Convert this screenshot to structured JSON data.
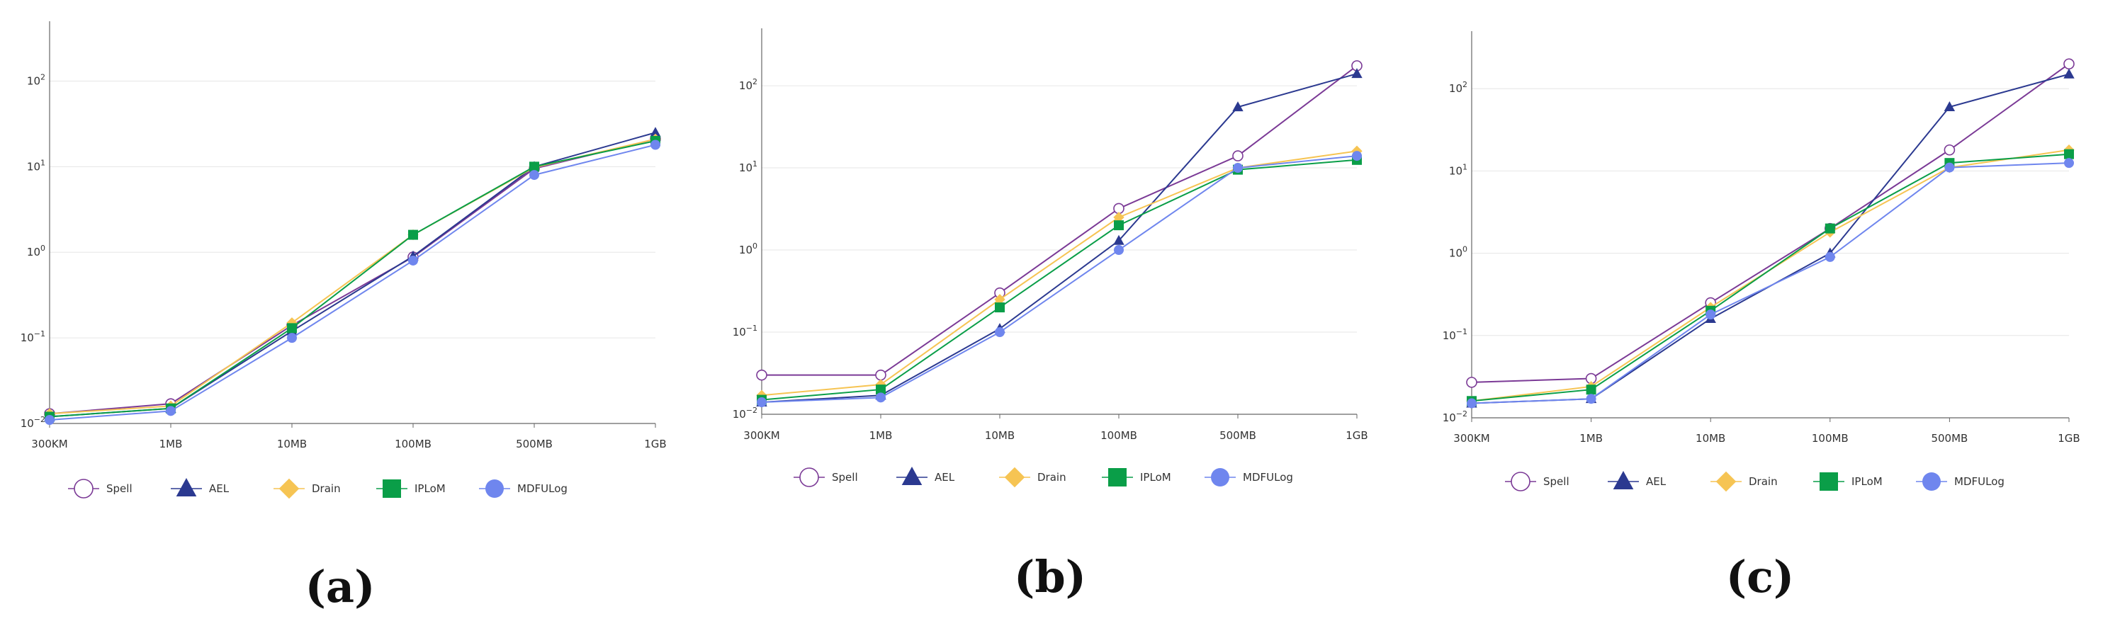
{
  "chart_data": [
    {
      "type": "line",
      "label": "(a)",
      "yscale": "log",
      "ylim": [
        0.01,
        500
      ],
      "yticks": [
        "10^-2",
        "10^-1",
        "10^0",
        "10^1",
        "10^2"
      ],
      "categories": [
        "300KM",
        "1MB",
        "10MB",
        "100MB",
        "500MB",
        "1GB"
      ],
      "series": [
        {
          "name": "Spell",
          "values": [
            0.013,
            0.017,
            0.14,
            0.88,
            9.5,
            21
          ]
        },
        {
          "name": "AEL",
          "values": [
            0.012,
            0.015,
            0.12,
            0.9,
            10,
            25
          ]
        },
        {
          "name": "Drain",
          "values": [
            0.013,
            0.016,
            0.15,
            1.6,
            9.8,
            21
          ]
        },
        {
          "name": "IPLoM",
          "values": [
            0.012,
            0.015,
            0.13,
            1.6,
            10,
            20
          ]
        },
        {
          "name": "MDFULog",
          "values": [
            0.011,
            0.014,
            0.1,
            0.8,
            8,
            18
          ]
        }
      ],
      "legend": "bottom"
    },
    {
      "type": "line",
      "label": "(b)",
      "yscale": "log",
      "ylim": [
        0.01,
        500
      ],
      "yticks": [
        "10^-2",
        "10^-1",
        "10^0",
        "10^1",
        "10^2"
      ],
      "categories": [
        "300KM",
        "1MB",
        "10MB",
        "100MB",
        "500MB",
        "1GB"
      ],
      "series": [
        {
          "name": "Spell",
          "values": [
            0.03,
            0.03,
            0.3,
            3.2,
            14,
            175
          ]
        },
        {
          "name": "AEL",
          "values": [
            0.014,
            0.017,
            0.11,
            1.3,
            55,
            140
          ]
        },
        {
          "name": "Drain",
          "values": [
            0.017,
            0.023,
            0.25,
            2.5,
            10,
            16
          ]
        },
        {
          "name": "IPLoM",
          "values": [
            0.015,
            0.02,
            0.2,
            2,
            9.5,
            12.5
          ]
        },
        {
          "name": "MDFULog",
          "values": [
            0.014,
            0.016,
            0.1,
            1,
            10,
            14
          ]
        }
      ],
      "legend": "bottom"
    },
    {
      "type": "line",
      "label": "(c)",
      "yscale": "log",
      "ylim": [
        0.01,
        500
      ],
      "yticks": [
        "10^-2",
        "10^-1",
        "10^0",
        "10^1",
        "10^2"
      ],
      "categories": [
        "300KM",
        "1MB",
        "10MB",
        "100MB",
        "500MB",
        "1GB"
      ],
      "series": [
        {
          "name": "Spell",
          "values": [
            0.027,
            0.03,
            0.25,
            2,
            18,
            200
          ]
        },
        {
          "name": "AEL",
          "values": [
            0.015,
            0.017,
            0.16,
            1,
            60,
            150
          ]
        },
        {
          "name": "Drain",
          "values": [
            0.016,
            0.024,
            0.22,
            1.8,
            11,
            18
          ]
        },
        {
          "name": "IPLoM",
          "values": [
            0.016,
            0.022,
            0.2,
            2,
            12.5,
            16
          ]
        },
        {
          "name": "MDFULog",
          "values": [
            0.015,
            0.017,
            0.18,
            0.9,
            11,
            12.5
          ]
        }
      ],
      "legend": "bottom"
    }
  ],
  "series_styles": {
    "Spell": {
      "color": "#7b3a96",
      "marker": "circle-open"
    },
    "AEL": {
      "color": "#2b3990",
      "marker": "triangle"
    },
    "Drain": {
      "color": "#f6c453",
      "marker": "diamond"
    },
    "IPLoM": {
      "color": "#0a9e48",
      "marker": "square"
    },
    "MDFULog": {
      "color": "#6f86ee",
      "marker": "circle"
    }
  }
}
